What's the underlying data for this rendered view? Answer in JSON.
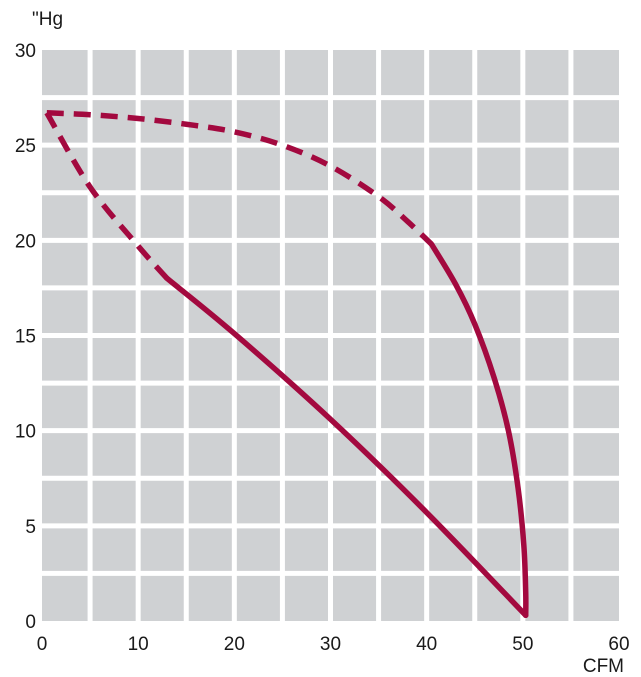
{
  "chart_data": {
    "type": "line",
    "xlabel": "CFM",
    "ylabel": "\"Hg",
    "xlim": [
      0,
      60
    ],
    "ylim": [
      0,
      30
    ],
    "x_ticks": [
      0,
      10,
      20,
      30,
      40,
      50,
      60
    ],
    "y_ticks": [
      0,
      5,
      10,
      15,
      20,
      25,
      30
    ],
    "grid": true,
    "colors": {
      "background": "#cfd1d3",
      "grid": "#ffffff",
      "series": "#a3093f"
    },
    "series": [
      {
        "style": "dashed-then-solid",
        "dash_until_x": 40.5,
        "points": [
          [
            0.5,
            26.7
          ],
          [
            5,
            26.6
          ],
          [
            10,
            26.4
          ],
          [
            15,
            26.1
          ],
          [
            20,
            25.7
          ],
          [
            25,
            25.0
          ],
          [
            30,
            23.9
          ],
          [
            35,
            22.3
          ],
          [
            38,
            21.0
          ],
          [
            40.5,
            19.8
          ],
          [
            43,
            17.7
          ],
          [
            45,
            15.6
          ],
          [
            47,
            12.8
          ],
          [
            48.5,
            10.0
          ],
          [
            49.5,
            7.0
          ],
          [
            50.1,
            4.0
          ],
          [
            50.3,
            1.5
          ],
          [
            50.3,
            0.3
          ]
        ]
      },
      {
        "style": "dashed-then-solid",
        "dash_until_x": 13,
        "points": [
          [
            0.5,
            26.7
          ],
          [
            5,
            22.8
          ],
          [
            10,
            19.7
          ],
          [
            13,
            18.0
          ],
          [
            20,
            15.1
          ],
          [
            30,
            10.6
          ],
          [
            40,
            5.7
          ],
          [
            50.3,
            0.3
          ]
        ]
      }
    ]
  }
}
